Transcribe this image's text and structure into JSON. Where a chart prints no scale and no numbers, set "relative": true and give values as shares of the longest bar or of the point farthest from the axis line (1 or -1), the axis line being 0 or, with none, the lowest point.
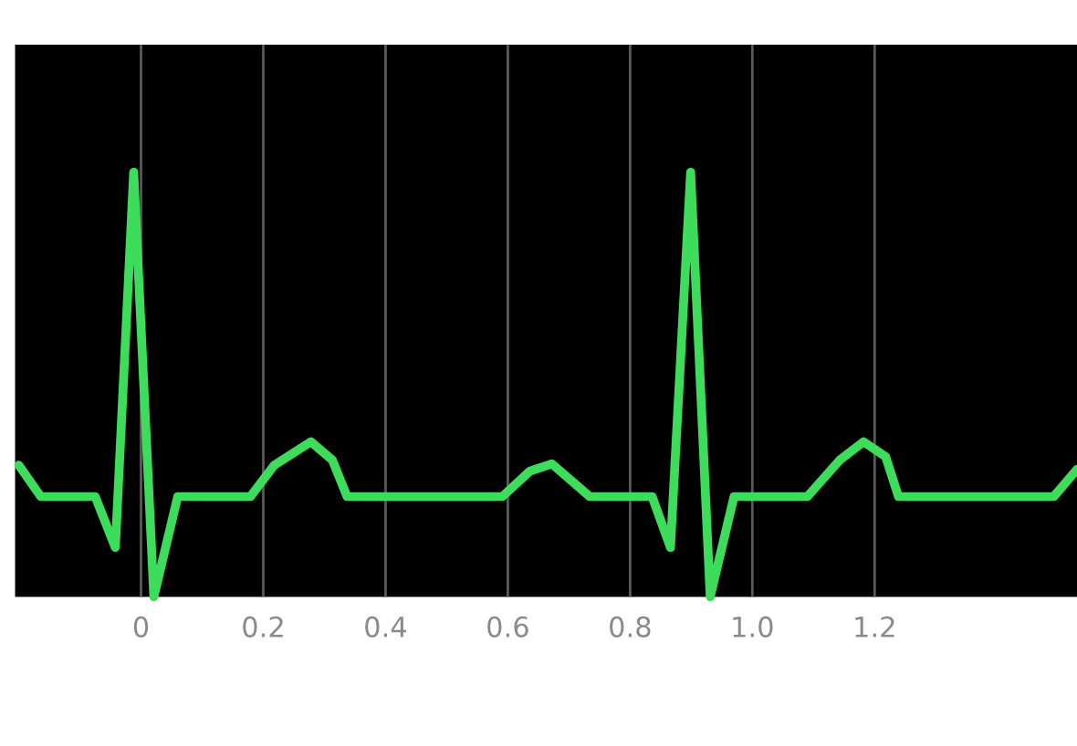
{
  "chart_data": {
    "type": "line",
    "relative": true,
    "grid": "x",
    "marker": "none",
    "line_style": "solid",
    "x": [
      -0.2,
      -0.164,
      -0.075,
      -0.042,
      -0.012,
      0.021,
      0.06,
      0.179,
      0.218,
      0.278,
      0.313,
      0.337,
      0.591,
      0.636,
      0.672,
      0.734,
      0.836,
      0.866,
      0.899,
      0.931,
      0.97,
      1.09,
      1.143,
      1.182,
      1.218,
      1.239,
      1.493,
      1.531
    ],
    "series": [
      {
        "color": "#3ddc5a",
        "values": [
          0.31,
          0.236,
          0.236,
          0.116,
          1,
          0,
          0.236,
          0.236,
          0.31,
          0.365,
          0.322,
          0.236,
          0.236,
          0.296,
          0.313,
          0.236,
          0.236,
          0.116,
          1,
          0,
          0.236,
          0.236,
          0.322,
          0.365,
          0.33,
          0.236,
          0.236,
          0.3
        ]
      }
    ],
    "xlim": [
      -0.206,
      1.531
    ],
    "xticks": [
      0,
      0.2,
      0.4,
      0.6,
      0.8,
      {
        "value": 1,
        "label": "1.0"
      },
      1.2
    ]
  }
}
